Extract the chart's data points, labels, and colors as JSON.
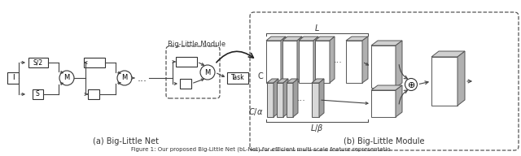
{
  "bg_color": "#ffffff",
  "caption_a": "(a) Big-Little Net",
  "caption_b": "(b) Big-Little Module",
  "big_little_module_label": "Big-Little Module",
  "figure_caption": "Figure 1: Our proposed Big-Little Net (bL-Net) for efficient multi-scale feature representatio"
}
